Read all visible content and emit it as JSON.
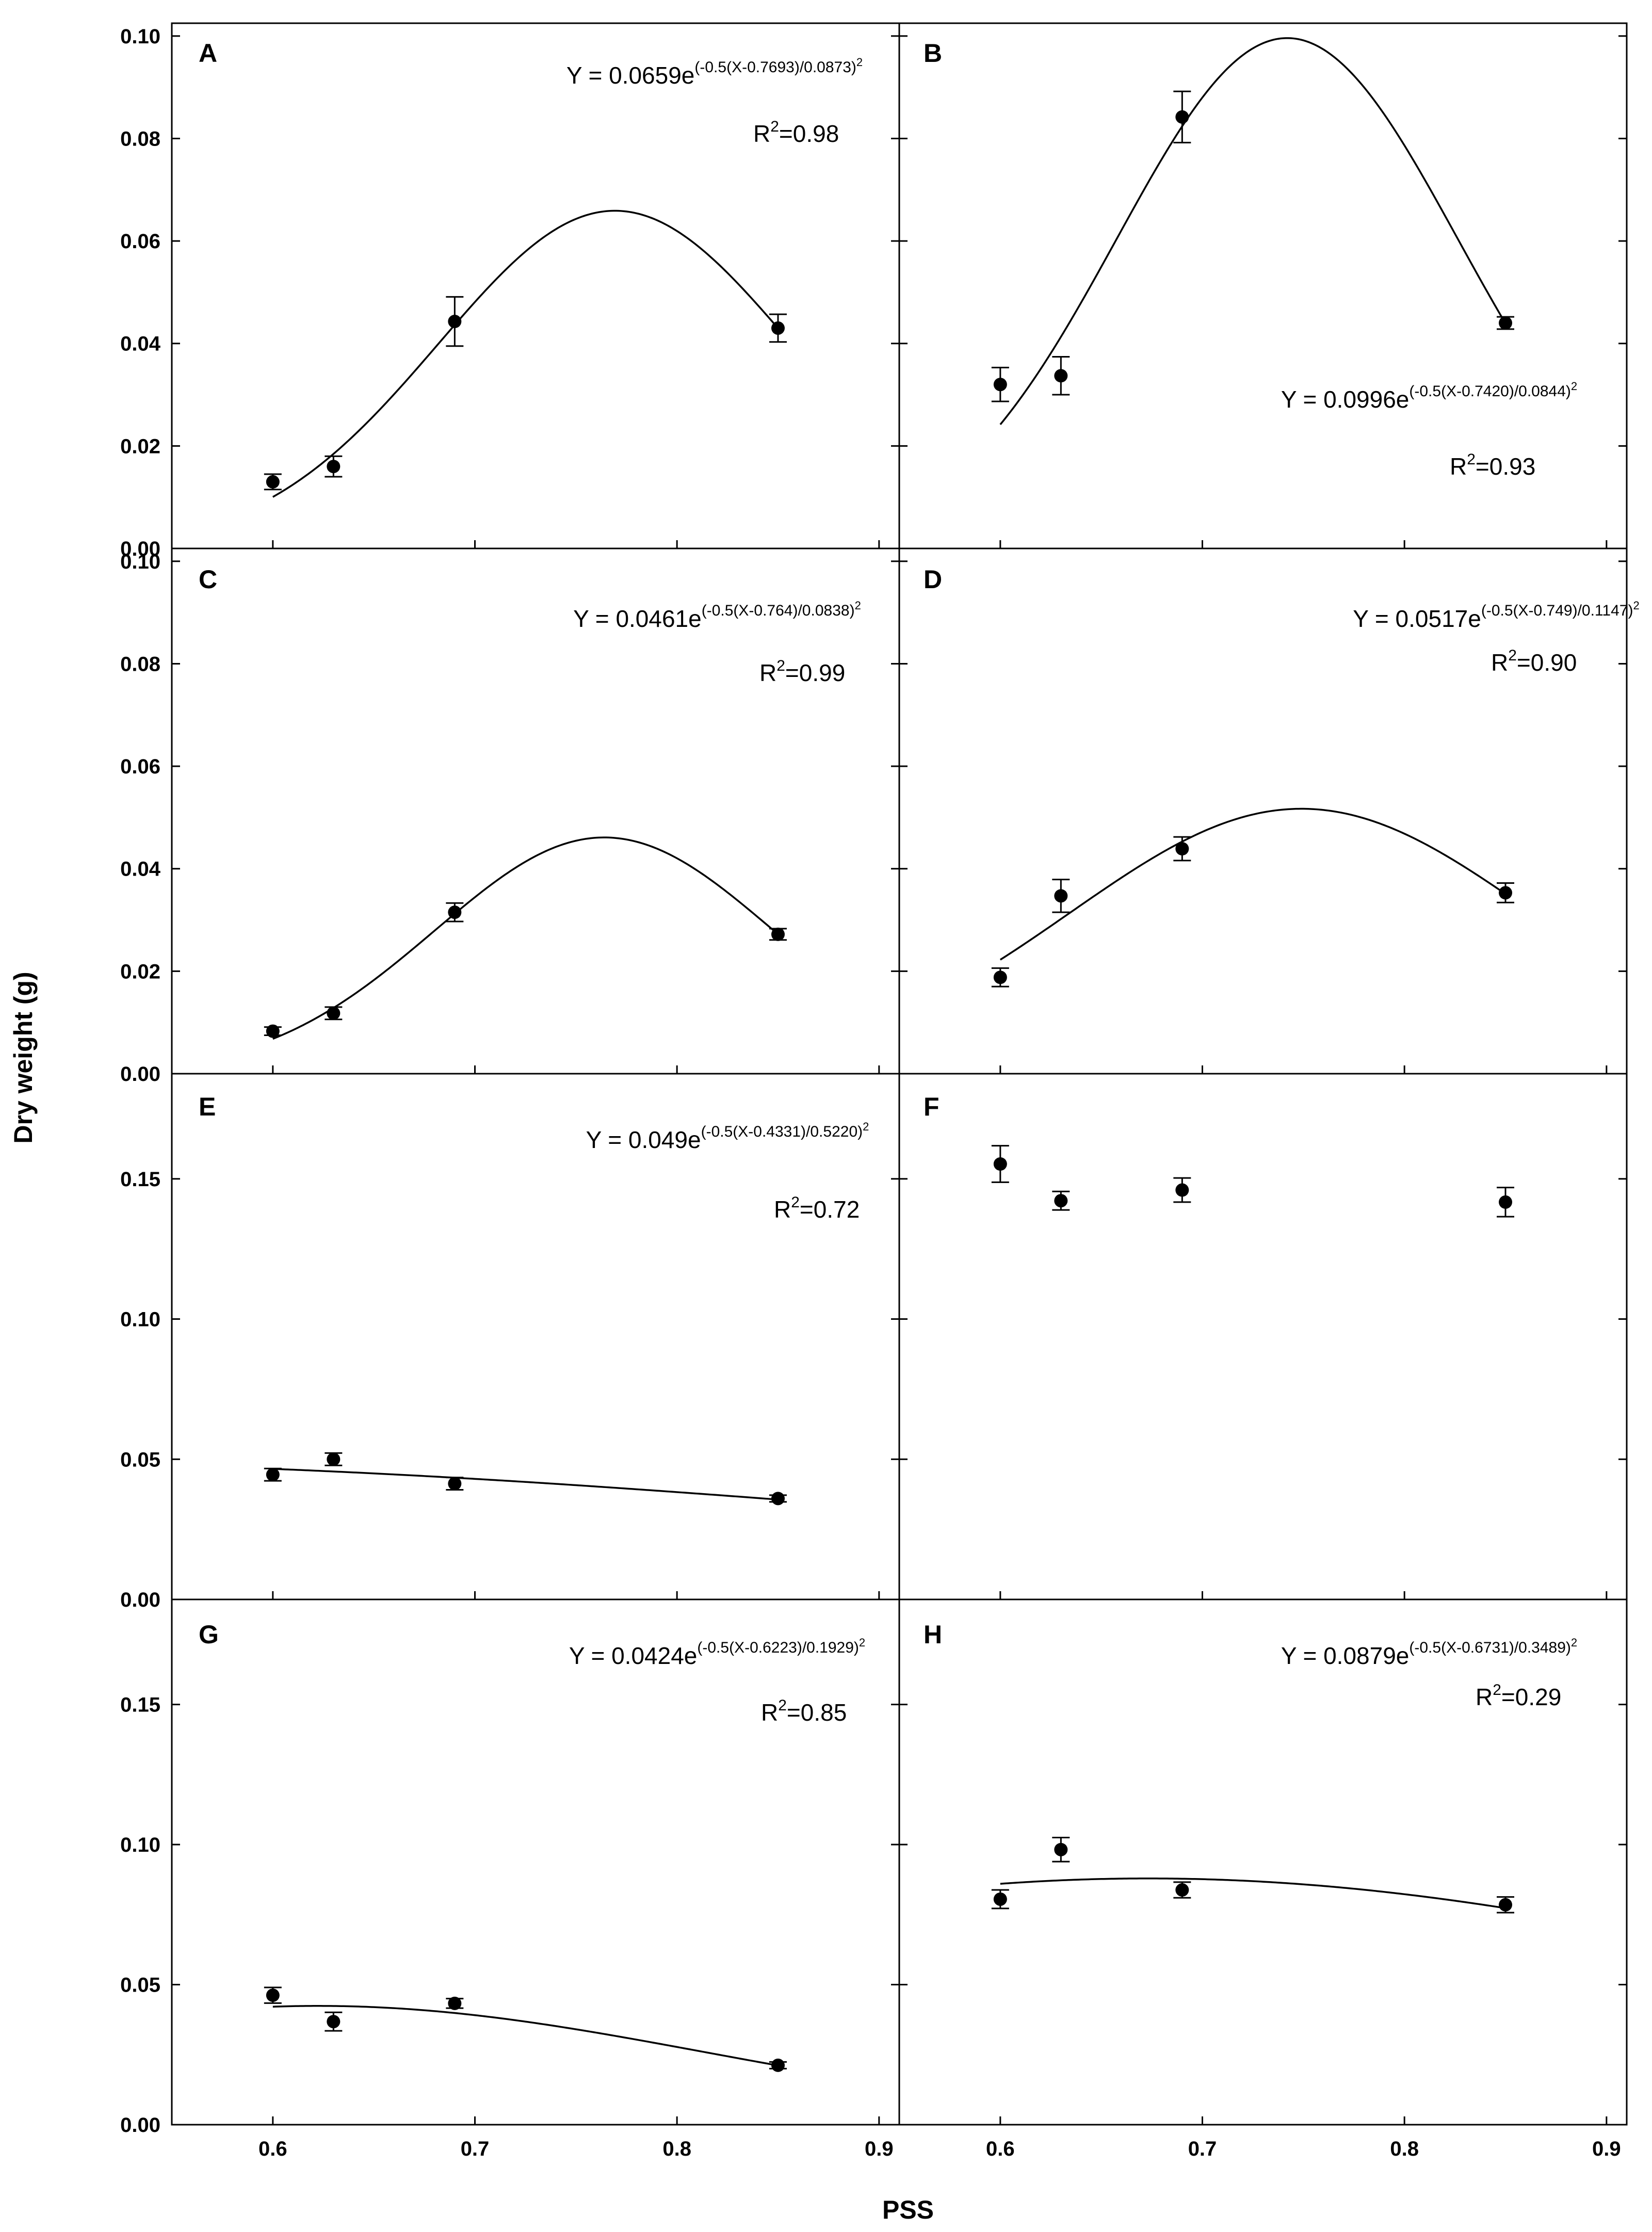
{
  "figure": {
    "ylabel": "Dry weight (g)",
    "xlabel": "PSS"
  },
  "chart_data": [
    {
      "type": "scatter",
      "panel": "A",
      "x": [
        0.6,
        0.63,
        0.69,
        0.85
      ],
      "y": [
        0.013,
        0.016,
        0.0443,
        0.043
      ],
      "err": [
        0.0015,
        0.002,
        0.0048,
        0.0027
      ],
      "fit": {
        "a": 0.0659,
        "x0": 0.7693,
        "b": 0.0873
      },
      "equation": {
        "lhs": "Y = 0.0659e",
        "exp": "(-0.5(X-0.7693)/0.0873)",
        "sq": "2"
      },
      "r2": {
        "lhs": "R",
        "sup": "2",
        "rhs": "=0.98"
      },
      "xlim": [
        0.55,
        0.91
      ],
      "ylim": [
        0,
        0.1025
      ],
      "xticks": [
        "0.6",
        "0.7",
        "0.8",
        "0.9"
      ],
      "yticks": [
        "0.00",
        "0.02",
        "0.04",
        "0.06",
        "0.08",
        "0.10"
      ],
      "ytick_values": [
        0,
        0.02,
        0.04,
        0.06,
        0.08,
        0.1
      ]
    },
    {
      "type": "scatter",
      "panel": "B",
      "x": [
        0.6,
        0.63,
        0.69,
        0.85
      ],
      "y": [
        0.032,
        0.0337,
        0.0842,
        0.044
      ],
      "err": [
        0.0033,
        0.0037,
        0.005,
        0.0012
      ],
      "fit": {
        "a": 0.0996,
        "x0": 0.742,
        "b": 0.0844
      },
      "equation": {
        "lhs": "Y = 0.0996e",
        "exp": "(-0.5(X-0.7420)/0.0844)",
        "sq": "2"
      },
      "r2": {
        "lhs": "R",
        "sup": "2",
        "rhs": "=0.93"
      },
      "xlim": [
        0.55,
        0.91
      ],
      "ylim": [
        0,
        0.1025
      ],
      "xticks": [
        "0.6",
        "0.7",
        "0.8",
        "0.9"
      ],
      "yticks": [
        "",
        "",
        "",
        "",
        "",
        ""
      ],
      "ytick_values": [
        0,
        0.02,
        0.04,
        0.06,
        0.08,
        0.1
      ]
    },
    {
      "type": "scatter",
      "panel": "C",
      "x": [
        0.6,
        0.63,
        0.69,
        0.85
      ],
      "y": [
        0.0083,
        0.0118,
        0.0315,
        0.0272
      ],
      "err": [
        0.0008,
        0.0012,
        0.0018,
        0.0011
      ],
      "fit": {
        "a": 0.0461,
        "x0": 0.764,
        "b": 0.0838
      },
      "equation": {
        "lhs": "Y = 0.0461e",
        "exp": "(-0.5(X-0.764)/0.0838)",
        "sq": "2"
      },
      "r2": {
        "lhs": "R",
        "sup": "2",
        "rhs": "=0.99"
      },
      "xlim": [
        0.55,
        0.91
      ],
      "ylim": [
        0,
        0.1025
      ],
      "xticks": [
        "0.6",
        "0.7",
        "0.8",
        "0.9"
      ],
      "yticks": [
        "0.00",
        "0.02",
        "0.04",
        "0.06",
        "0.08",
        "0.10"
      ],
      "ytick_values": [
        0,
        0.02,
        0.04,
        0.06,
        0.08,
        0.1
      ]
    },
    {
      "type": "scatter",
      "panel": "D",
      "x": [
        0.6,
        0.63,
        0.69,
        0.85
      ],
      "y": [
        0.0188,
        0.0347,
        0.0439,
        0.0353
      ],
      "err": [
        0.0018,
        0.0032,
        0.0023,
        0.0019
      ],
      "fit": {
        "a": 0.0517,
        "x0": 0.749,
        "b": 0.1147
      },
      "equation": {
        "lhs": "Y = 0.0517e",
        "exp": "(-0.5(X-0.749)/0.1147)",
        "sq": "2"
      },
      "r2": {
        "lhs": "R",
        "sup": "2",
        "rhs": "=0.90"
      },
      "xlim": [
        0.55,
        0.91
      ],
      "ylim": [
        0,
        0.1025
      ],
      "xticks": [
        "0.6",
        "0.7",
        "0.8",
        "0.9"
      ],
      "yticks": [
        "",
        "",
        "",
        "",
        "",
        ""
      ],
      "ytick_values": [
        0,
        0.02,
        0.04,
        0.06,
        0.08,
        0.1
      ]
    },
    {
      "type": "scatter",
      "panel": "E",
      "x": [
        0.6,
        0.63,
        0.69,
        0.85
      ],
      "y": [
        0.0445,
        0.05,
        0.0413,
        0.036
      ],
      "err": [
        0.0022,
        0.0022,
        0.0022,
        0.0012
      ],
      "fit": {
        "a": 0.049,
        "x0": 0.4331,
        "b": 0.522
      },
      "equation": {
        "lhs": "Y = 0.049e",
        "exp": "(-0.5(X-0.4331)/0.5220)",
        "sq": "2"
      },
      "r2": {
        "lhs": "R",
        "sup": "2",
        "rhs": "=0.72"
      },
      "xlim": [
        0.55,
        0.91
      ],
      "ylim": [
        0,
        0.1875
      ],
      "xticks": [
        "0.6",
        "0.7",
        "0.8",
        "0.9"
      ],
      "yticks": [
        "0.00",
        "0.05",
        "0.10",
        "0.15"
      ],
      "ytick_values": [
        0,
        0.05,
        0.1,
        0.15
      ]
    },
    {
      "type": "scatter",
      "panel": "F",
      "x": [
        0.6,
        0.63,
        0.69,
        0.85
      ],
      "y": [
        0.1553,
        0.1422,
        0.146,
        0.1417
      ],
      "err": [
        0.0065,
        0.0033,
        0.0043,
        0.0052
      ],
      "fit": null,
      "equation": null,
      "r2": null,
      "xlim": [
        0.55,
        0.91
      ],
      "ylim": [
        0,
        0.1875
      ],
      "xticks": [
        "0.6",
        "0.7",
        "0.8",
        "0.9"
      ],
      "yticks": [
        "",
        "",
        "",
        ""
      ],
      "ytick_values": [
        0,
        0.05,
        0.1,
        0.15
      ]
    },
    {
      "type": "scatter",
      "panel": "G",
      "x": [
        0.6,
        0.63,
        0.69,
        0.85
      ],
      "y": [
        0.0462,
        0.0368,
        0.0433,
        0.0212
      ],
      "err": [
        0.0028,
        0.0033,
        0.0017,
        0.0012
      ],
      "fit": {
        "a": 0.0424,
        "x0": 0.6223,
        "b": 0.1929
      },
      "equation": {
        "lhs": "Y = 0.0424e",
        "exp": "(-0.5(X-0.6223)/0.1929)",
        "sq": "2"
      },
      "r2": {
        "lhs": "R",
        "sup": "2",
        "rhs": "=0.85"
      },
      "xlim": [
        0.55,
        0.91
      ],
      "ylim": [
        0,
        0.1875
      ],
      "xticks": [
        "0.6",
        "0.7",
        "0.8",
        "0.9"
      ],
      "yticks": [
        "0.00",
        "0.05",
        "0.10",
        "0.15"
      ],
      "ytick_values": [
        0,
        0.05,
        0.1,
        0.15
      ]
    },
    {
      "type": "scatter",
      "panel": "H",
      "x": [
        0.6,
        0.63,
        0.69,
        0.85
      ],
      "y": [
        0.0805,
        0.0982,
        0.0838,
        0.0785
      ],
      "err": [
        0.0033,
        0.0043,
        0.0028,
        0.0028
      ],
      "fit": {
        "a": 0.0879,
        "x0": 0.6731,
        "b": 0.3489
      },
      "equation": {
        "lhs": "Y = 0.0879e",
        "exp": "(-0.5(X-0.6731)/0.3489)",
        "sq": "2"
      },
      "r2": {
        "lhs": "R",
        "sup": "2",
        "rhs": "=0.29"
      },
      "xlim": [
        0.55,
        0.91
      ],
      "ylim": [
        0,
        0.1875
      ],
      "xticks": [
        "0.6",
        "0.7",
        "0.8",
        "0.9"
      ],
      "yticks": [
        "",
        "",
        "",
        ""
      ],
      "ytick_values": [
        0,
        0.05,
        0.1,
        0.15
      ]
    }
  ]
}
